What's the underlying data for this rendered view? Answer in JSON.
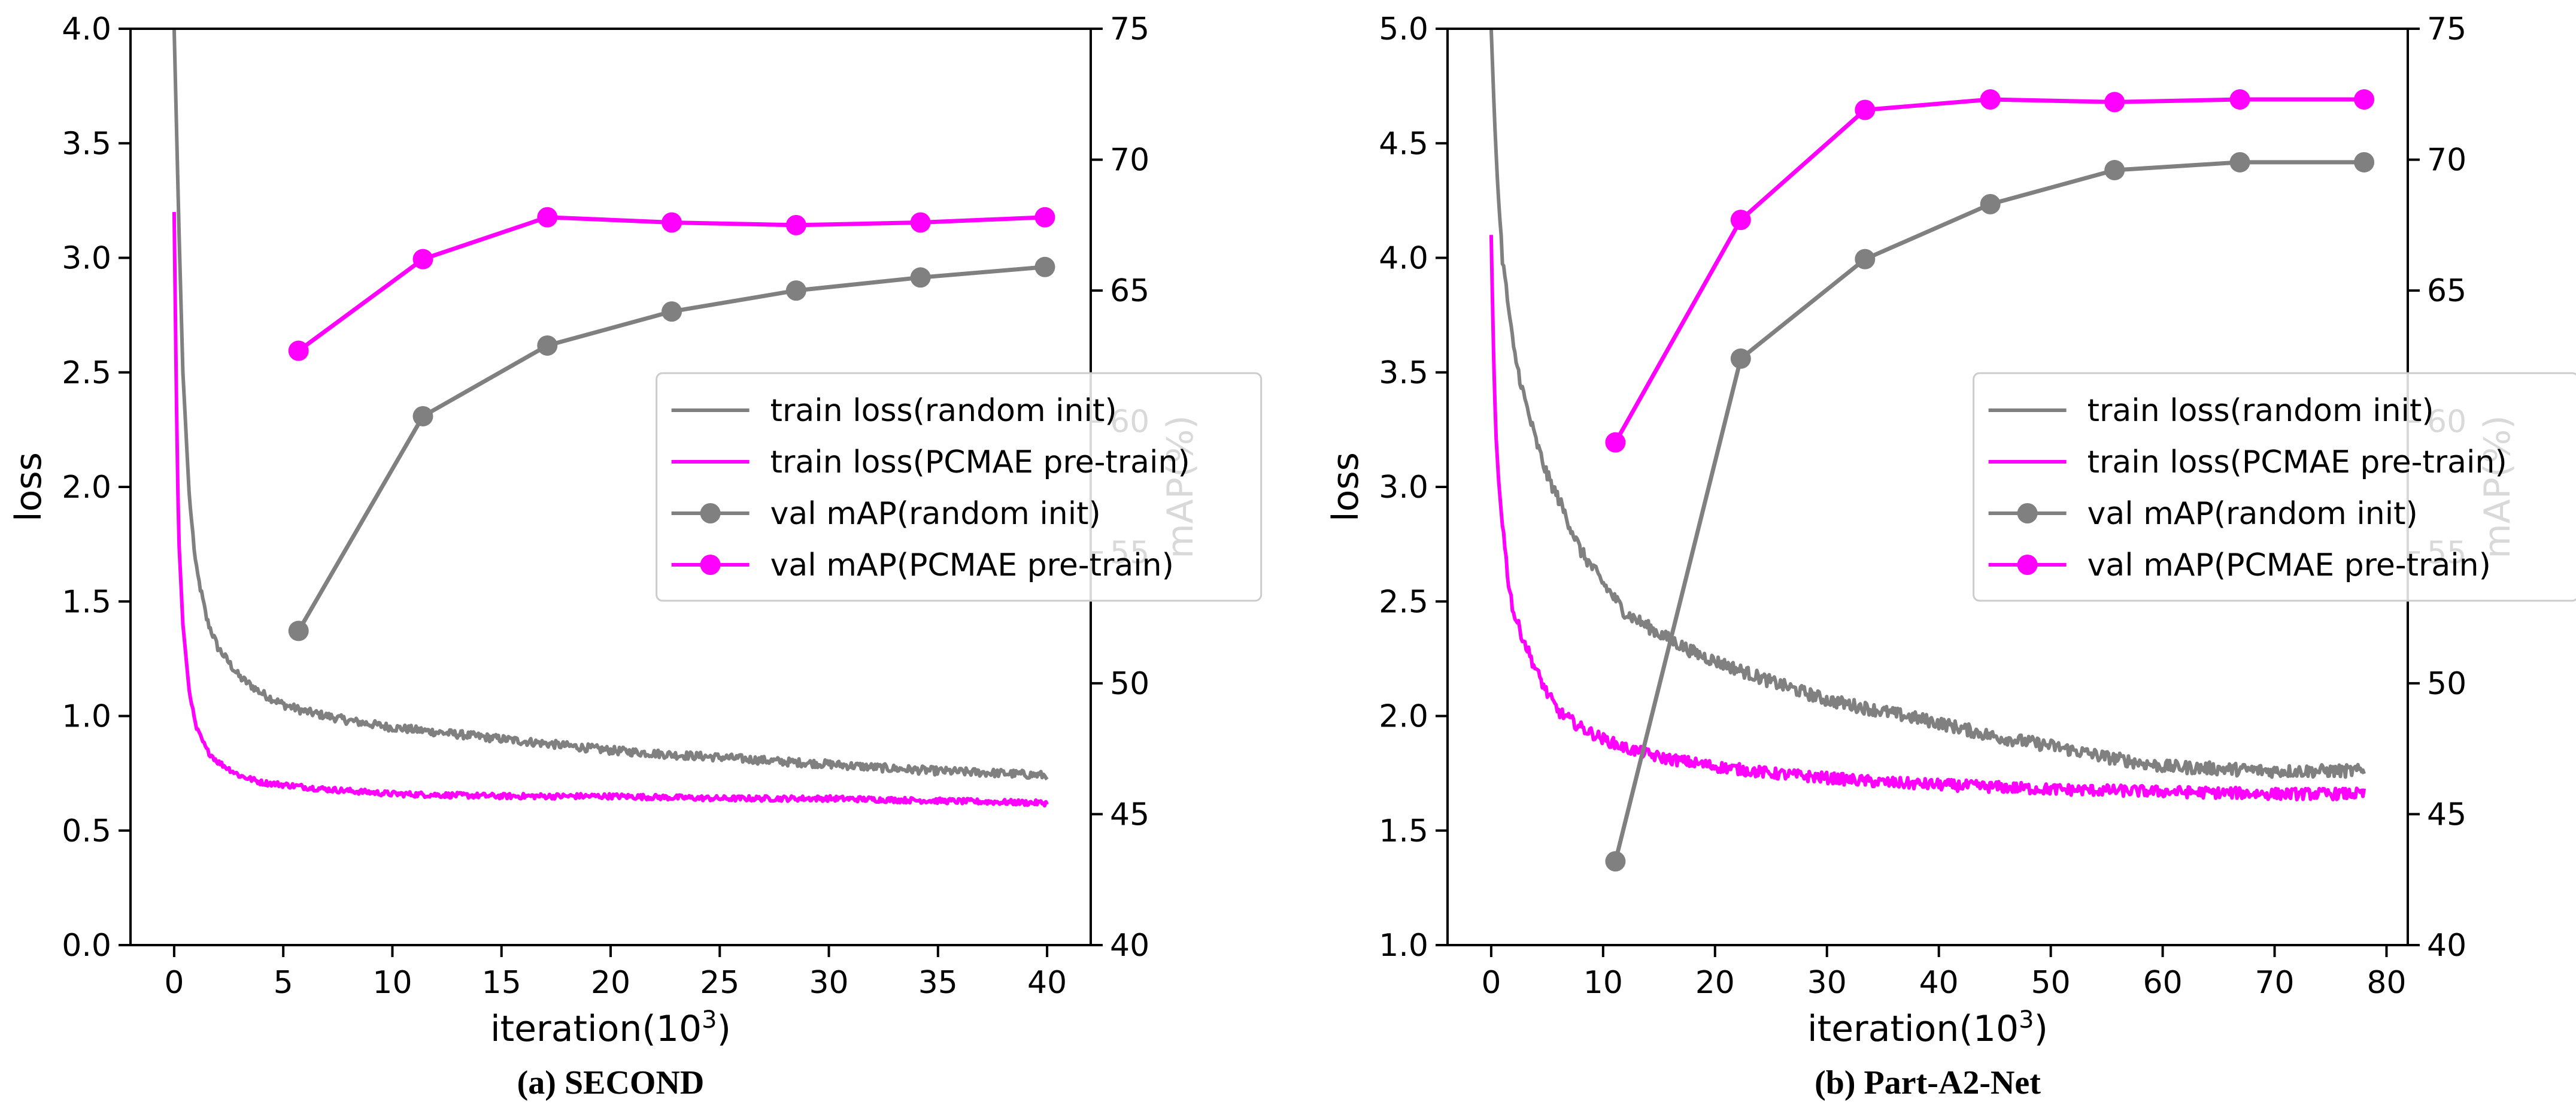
{
  "colors": {
    "random": "#808080",
    "pcmae": "#ff00ff",
    "axis": "#000000"
  },
  "legend_labels": [
    "train loss(random init)",
    "train loss(PCMAE pre-train)",
    "val mAP(random init)",
    "val mAP(PCMAE pre-train)"
  ],
  "chart_data": [
    {
      "type": "line",
      "caption": "(a) SECOND",
      "xlabel": "iteration(10",
      "xlabel_sup": "3",
      "xlabel_end": ")",
      "ylabel": "loss",
      "y2label": "mAP(%)",
      "xlim": [
        -2,
        42
      ],
      "ylim": [
        0.0,
        4.0
      ],
      "y2lim": [
        40,
        75
      ],
      "xticks": [
        0,
        5,
        10,
        15,
        20,
        25,
        30,
        35,
        40
      ],
      "xtick_labels": [
        "0",
        "5",
        "10",
        "15",
        "20",
        "25",
        "30",
        "35",
        "40"
      ],
      "yticks": [
        0.0,
        0.5,
        1.0,
        1.5,
        2.0,
        2.5,
        3.0,
        3.5,
        4.0
      ],
      "ytick_labels": [
        "0.0",
        "0.5",
        "1.0",
        "1.5",
        "2.0",
        "2.5",
        "3.0",
        "3.5",
        "4.0"
      ],
      "y2ticks": [
        40,
        45,
        50,
        55,
        60,
        65,
        70,
        75
      ],
      "y2tick_labels": [
        "40",
        "45",
        "50",
        "55",
        "60",
        "65",
        "70",
        "75"
      ],
      "legend_position": "center-right",
      "series": [
        {
          "name": "train loss(random init)",
          "axis": "left",
          "color": "#808080",
          "marker": false,
          "x": [
            0,
            0.2,
            0.4,
            0.7,
            1,
            1.5,
            2,
            3,
            4,
            5,
            6,
            8,
            10,
            12,
            15,
            18,
            20,
            23,
            25,
            28,
            30,
            33,
            35,
            38,
            40
          ],
          "y": [
            4.0,
            3.2,
            2.5,
            1.95,
            1.65,
            1.42,
            1.3,
            1.17,
            1.1,
            1.05,
            1.02,
            0.98,
            0.95,
            0.93,
            0.9,
            0.87,
            0.85,
            0.83,
            0.82,
            0.8,
            0.79,
            0.77,
            0.76,
            0.75,
            0.74
          ],
          "noise": 0.018
        },
        {
          "name": "train loss(PCMAE pre-train)",
          "axis": "left",
          "color": "#ff00ff",
          "marker": false,
          "x": [
            0,
            0.1,
            0.2,
            0.4,
            0.7,
            1,
            1.5,
            2,
            3,
            4,
            5,
            7,
            10,
            15,
            20,
            25,
            30,
            35,
            40
          ],
          "y": [
            3.2,
            2.4,
            1.8,
            1.4,
            1.1,
            0.95,
            0.85,
            0.8,
            0.74,
            0.71,
            0.7,
            0.68,
            0.66,
            0.65,
            0.65,
            0.64,
            0.64,
            0.63,
            0.62
          ],
          "noise": 0.012
        },
        {
          "name": "val mAP(random init)",
          "axis": "right",
          "color": "#808080",
          "marker": true,
          "x": [
            5.7,
            11.4,
            17.1,
            22.8,
            28.5,
            34.2,
            39.9
          ],
          "y": [
            52.0,
            60.2,
            62.9,
            64.2,
            65.0,
            65.5,
            65.9
          ]
        },
        {
          "name": "val mAP(PCMAE pre-train)",
          "axis": "right",
          "color": "#ff00ff",
          "marker": true,
          "x": [
            5.7,
            11.4,
            17.1,
            22.8,
            28.5,
            34.2,
            39.9
          ],
          "y": [
            62.7,
            66.2,
            67.8,
            67.6,
            67.5,
            67.6,
            67.8
          ]
        }
      ]
    },
    {
      "type": "line",
      "caption": "(b) Part-A2-Net",
      "xlabel": "iteration(10",
      "xlabel_sup": "3",
      "xlabel_end": ")",
      "ylabel": "loss",
      "y2label": "mAP(%)",
      "xlim": [
        -3.9,
        81.9
      ],
      "ylim": [
        1.0,
        5.0
      ],
      "y2lim": [
        40,
        75
      ],
      "xticks": [
        0,
        10,
        20,
        30,
        40,
        50,
        60,
        70,
        80
      ],
      "xtick_labels": [
        "0",
        "10",
        "20",
        "30",
        "40",
        "50",
        "60",
        "70",
        "80"
      ],
      "yticks": [
        1.0,
        1.5,
        2.0,
        2.5,
        3.0,
        3.5,
        4.0,
        4.5,
        5.0
      ],
      "ytick_labels": [
        "1.0",
        "1.5",
        "2.0",
        "2.5",
        "3.0",
        "3.5",
        "4.0",
        "4.5",
        "5.0"
      ],
      "y2ticks": [
        40,
        45,
        50,
        55,
        60,
        65,
        70,
        75
      ],
      "y2tick_labels": [
        "40",
        "45",
        "50",
        "55",
        "60",
        "65",
        "70",
        "75"
      ],
      "legend_position": "center-right",
      "series": [
        {
          "name": "train loss(random init)",
          "axis": "left",
          "color": "#808080",
          "marker": false,
          "x": [
            0,
            0.3,
            0.6,
            1,
            1.5,
            2,
            3,
            4,
            5,
            6,
            8,
            10,
            12,
            15,
            18,
            20,
            25,
            30,
            35,
            40,
            45,
            50,
            55,
            60,
            65,
            70,
            75,
            78
          ],
          "y": [
            5.0,
            4.6,
            4.3,
            4.0,
            3.8,
            3.6,
            3.38,
            3.2,
            3.05,
            2.95,
            2.72,
            2.58,
            2.45,
            2.36,
            2.28,
            2.24,
            2.15,
            2.07,
            2.02,
            1.97,
            1.91,
            1.87,
            1.82,
            1.78,
            1.77,
            1.76,
            1.76,
            1.76
          ],
          "noise": 0.028
        },
        {
          "name": "train loss(PCMAE pre-train)",
          "axis": "left",
          "color": "#ff00ff",
          "marker": false,
          "x": [
            0,
            0.2,
            0.4,
            0.7,
            1,
            1.5,
            2,
            3,
            4,
            5,
            6,
            8,
            10,
            12,
            15,
            20,
            25,
            30,
            35,
            40,
            50,
            60,
            70,
            78
          ],
          "y": [
            4.1,
            3.6,
            3.25,
            3.0,
            2.85,
            2.6,
            2.45,
            2.32,
            2.2,
            2.1,
            2.02,
            1.95,
            1.9,
            1.86,
            1.82,
            1.78,
            1.75,
            1.73,
            1.71,
            1.7,
            1.68,
            1.67,
            1.66,
            1.66
          ],
          "noise": 0.025
        },
        {
          "name": "val mAP(random init)",
          "axis": "right",
          "color": "#808080",
          "marker": true,
          "x": [
            11.1,
            22.3,
            33.4,
            44.6,
            55.7,
            66.9,
            78.0
          ],
          "y": [
            43.2,
            62.4,
            66.2,
            68.3,
            69.6,
            69.9,
            69.9
          ]
        },
        {
          "name": "val mAP(PCMAE pre-train)",
          "axis": "right",
          "color": "#ff00ff",
          "marker": true,
          "x": [
            11.1,
            22.3,
            33.4,
            44.6,
            55.7,
            66.9,
            78.0
          ],
          "y": [
            59.2,
            67.7,
            71.9,
            72.3,
            72.2,
            72.3,
            72.3
          ]
        }
      ]
    }
  ]
}
